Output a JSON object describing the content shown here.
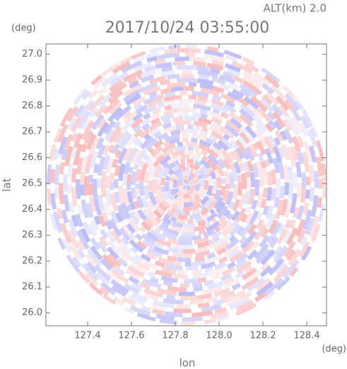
{
  "chart_data": {
    "type": "heatmap",
    "title": "2017/10/24 03:55:00",
    "subtitle": "ALT(km) 2.0",
    "x_label": "lon",
    "y_label": "lat",
    "x_unit": "(deg)",
    "y_unit": "(deg)",
    "xlim": [
      127.21,
      128.49
    ],
    "ylim": [
      25.95,
      27.04
    ],
    "xticks": [
      127.4,
      127.6,
      127.8,
      {
        "value": 128.0,
        "label": "128.0"
      },
      128.2,
      128.4
    ],
    "yticks": [
      {
        "value": 26.0,
        "label": "26.0"
      },
      26.1,
      26.2,
      26.3,
      26.4,
      26.5,
      26.6,
      26.7,
      26.8,
      26.9,
      {
        "value": 27.0,
        "label": "27.0"
      }
    ]
  }
}
